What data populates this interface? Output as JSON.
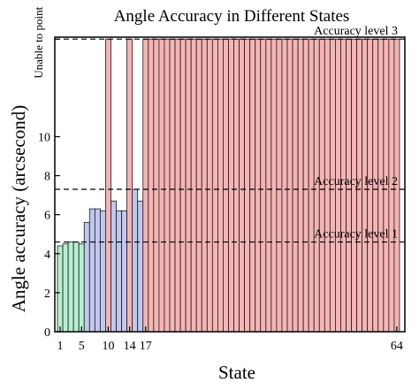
{
  "chart_data": {
    "type": "bar",
    "title": "Angle Accuracy in Different States",
    "xlabel": "State",
    "ylabel": "Angle accuracy (arcsecond)",
    "xlim": [
      0,
      65.5
    ],
    "ylim": [
      0,
      15.1
    ],
    "x_ticks": [
      1,
      5,
      10,
      14,
      17,
      64
    ],
    "y_ticks": [
      0,
      2,
      4,
      6,
      8,
      10
    ],
    "unable_label": "Unable to point",
    "unable_value": 15,
    "colors": {
      "level1": "#b6f0d0",
      "level2": "#c0c8ee",
      "level3": "#f6b4b4",
      "edge": "#1a1a1a"
    },
    "reference_lines": [
      {
        "label": "Accuracy level 1",
        "value": 4.6
      },
      {
        "label": "Accuracy level 2",
        "value": 7.3
      },
      {
        "label": "Accuracy level 3",
        "value": 15
      }
    ],
    "states": [
      1,
      2,
      3,
      4,
      5,
      6,
      7,
      8,
      9,
      10,
      11,
      12,
      13,
      14,
      15,
      16,
      17,
      18,
      19,
      20,
      21,
      22,
      23,
      24,
      25,
      26,
      27,
      28,
      29,
      30,
      31,
      32,
      33,
      34,
      35,
      36,
      37,
      38,
      39,
      40,
      41,
      42,
      43,
      44,
      45,
      46,
      47,
      48,
      49,
      50,
      51,
      52,
      53,
      54,
      55,
      56,
      57,
      58,
      59,
      60,
      61,
      62,
      63,
      64
    ],
    "values": [
      4.4,
      4.5,
      4.6,
      4.6,
      4.5,
      5.6,
      6.3,
      6.3,
      6.2,
      15,
      6.7,
      6.2,
      6.2,
      15,
      7.3,
      6.7,
      15,
      15,
      15,
      15,
      15,
      15,
      15,
      15,
      15,
      15,
      15,
      15,
      15,
      15,
      15,
      15,
      15,
      15,
      15,
      15,
      15,
      15,
      15,
      15,
      15,
      15,
      15,
      15,
      15,
      15,
      15,
      15,
      15,
      15,
      15,
      15,
      15,
      15,
      15,
      15,
      15,
      15,
      15,
      15,
      15,
      15,
      15,
      15
    ],
    "accuracy_level": [
      1,
      1,
      1,
      1,
      1,
      2,
      2,
      2,
      2,
      3,
      2,
      2,
      2,
      3,
      2,
      2,
      3,
      3,
      3,
      3,
      3,
      3,
      3,
      3,
      3,
      3,
      3,
      3,
      3,
      3,
      3,
      3,
      3,
      3,
      3,
      3,
      3,
      3,
      3,
      3,
      3,
      3,
      3,
      3,
      3,
      3,
      3,
      3,
      3,
      3,
      3,
      3,
      3,
      3,
      3,
      3,
      3,
      3,
      3,
      3,
      3,
      3,
      3,
      3
    ]
  }
}
